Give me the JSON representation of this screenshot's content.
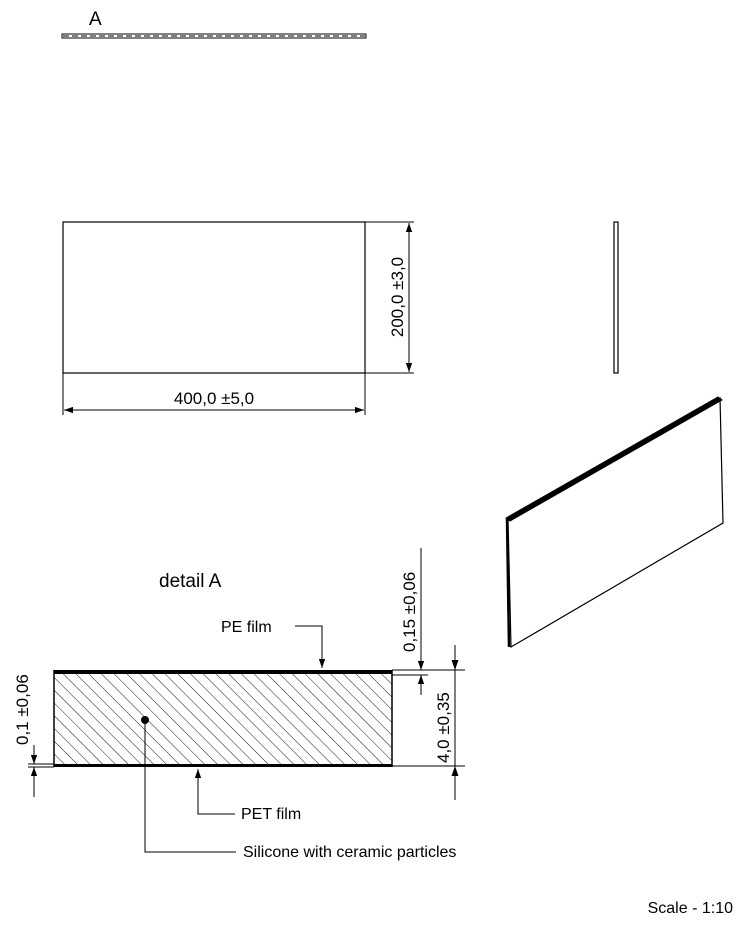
{
  "section_label": "A",
  "front_view": {
    "width_dimension": "400,0 ±5,0",
    "height_dimension": "200,0 ±3,0"
  },
  "detail": {
    "title": "detail A",
    "labels": {
      "pe_film": "PE film",
      "pet_film": "PET film",
      "core": "Silicone with ceramic particles"
    },
    "dimensions": {
      "top_film": "0,15 ±0,06",
      "total_thickness": "4,0 ±0,35",
      "bottom_film": "0,1 ±0,06"
    }
  },
  "scale": "Scale - 1:10"
}
